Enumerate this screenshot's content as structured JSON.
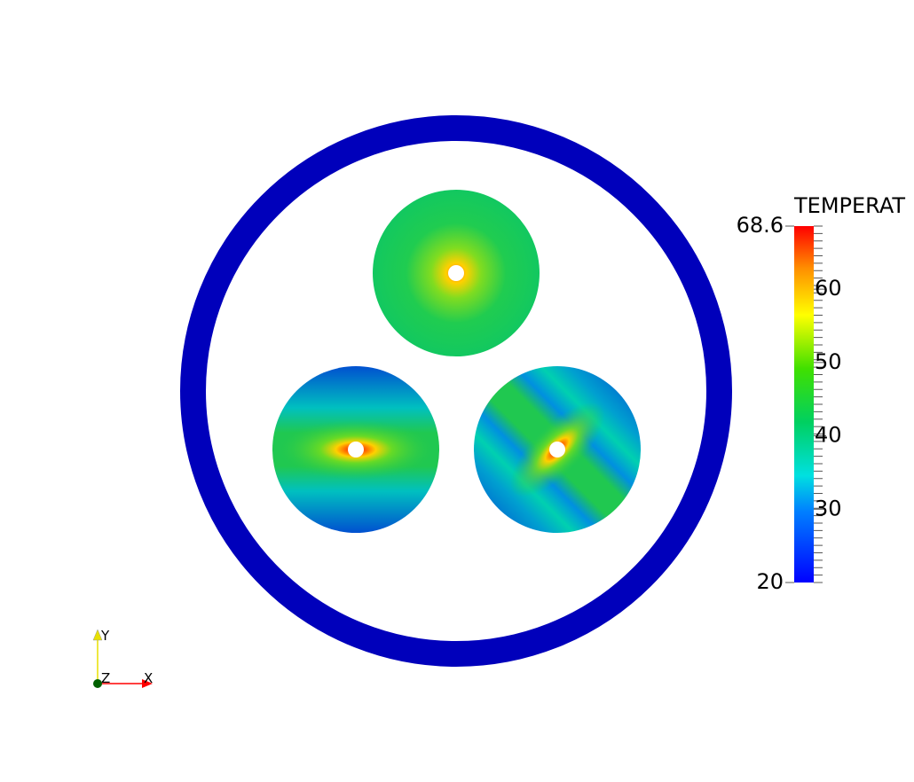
{
  "colorbar": {
    "title": "TEMPERAT",
    "min": 20,
    "max": 68.6,
    "ticks": [
      30,
      40,
      50,
      60
    ]
  },
  "axes": {
    "x": "X",
    "y": "Y",
    "z": "Z"
  }
}
